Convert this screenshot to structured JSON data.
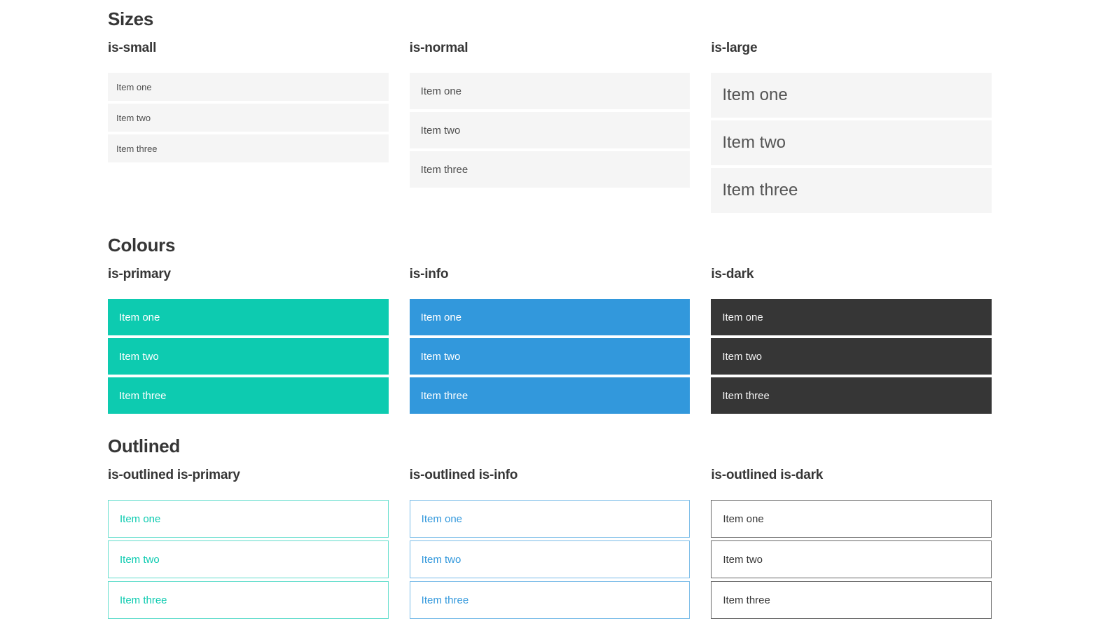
{
  "colors": {
    "primary": "#0dcbb0",
    "info": "#3298dc",
    "dark": "#363636",
    "item_bg": "#f5f5f5",
    "item_text": "#4f4f4f",
    "heading_text": "#363636",
    "page_bg": "#ffffff"
  },
  "sections": [
    {
      "title": "Sizes",
      "columns": [
        {
          "heading": "is-small",
          "variant": "small",
          "items": [
            "Item one",
            "Item two",
            "Item three"
          ]
        },
        {
          "heading": "is-normal",
          "variant": "normal",
          "items": [
            "Item one",
            "Item two",
            "Item three"
          ]
        },
        {
          "heading": "is-large",
          "variant": "large",
          "items": [
            "Item one",
            "Item two",
            "Item three"
          ]
        }
      ]
    },
    {
      "title": "Colours",
      "columns": [
        {
          "heading": "is-primary",
          "variant": "primary",
          "items": [
            "Item one",
            "Item two",
            "Item three"
          ]
        },
        {
          "heading": "is-info",
          "variant": "info",
          "items": [
            "Item one",
            "Item two",
            "Item three"
          ]
        },
        {
          "heading": "is-dark",
          "variant": "dark",
          "items": [
            "Item one",
            "Item two",
            "Item three"
          ]
        }
      ]
    },
    {
      "title": "Outlined",
      "columns": [
        {
          "heading": "is-outlined is-primary",
          "variant": "outlined-primary",
          "items": [
            "Item one",
            "Item two",
            "Item three"
          ]
        },
        {
          "heading": "is-outlined is-info",
          "variant": "outlined-info",
          "items": [
            "Item one",
            "Item two",
            "Item three"
          ]
        },
        {
          "heading": "is-outlined is-dark",
          "variant": "outlined-dark",
          "items": [
            "Item one",
            "Item two",
            "Item three"
          ]
        }
      ]
    }
  ]
}
